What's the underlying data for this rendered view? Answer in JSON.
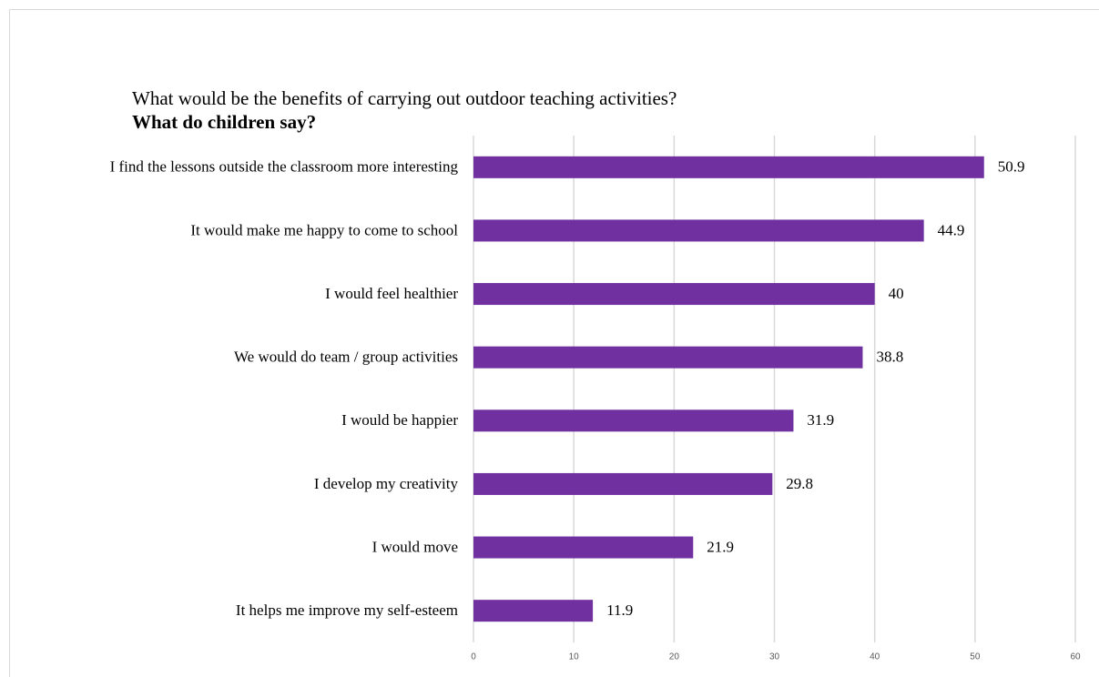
{
  "chart_data": {
    "type": "barh",
    "title": "What would be the benefits of carrying out outdoor teaching activities?",
    "subtitle": "What do children say?",
    "categories": [
      "I find the lessons outside the classroom more interesting",
      "It would make me happy to come to school",
      "I would feel healthier",
      "We would do team / group activities",
      "I would be happier",
      "I develop my creativity",
      "I would move",
      "It helps me improve my self-esteem"
    ],
    "values": [
      50.9,
      44.9,
      40,
      38.8,
      31.9,
      29.8,
      21.9,
      11.9
    ],
    "color": "#7030a0",
    "xlim": [
      0,
      60
    ],
    "xticks": [
      0,
      10,
      20,
      30,
      40,
      50,
      60
    ],
    "grid": true
  }
}
